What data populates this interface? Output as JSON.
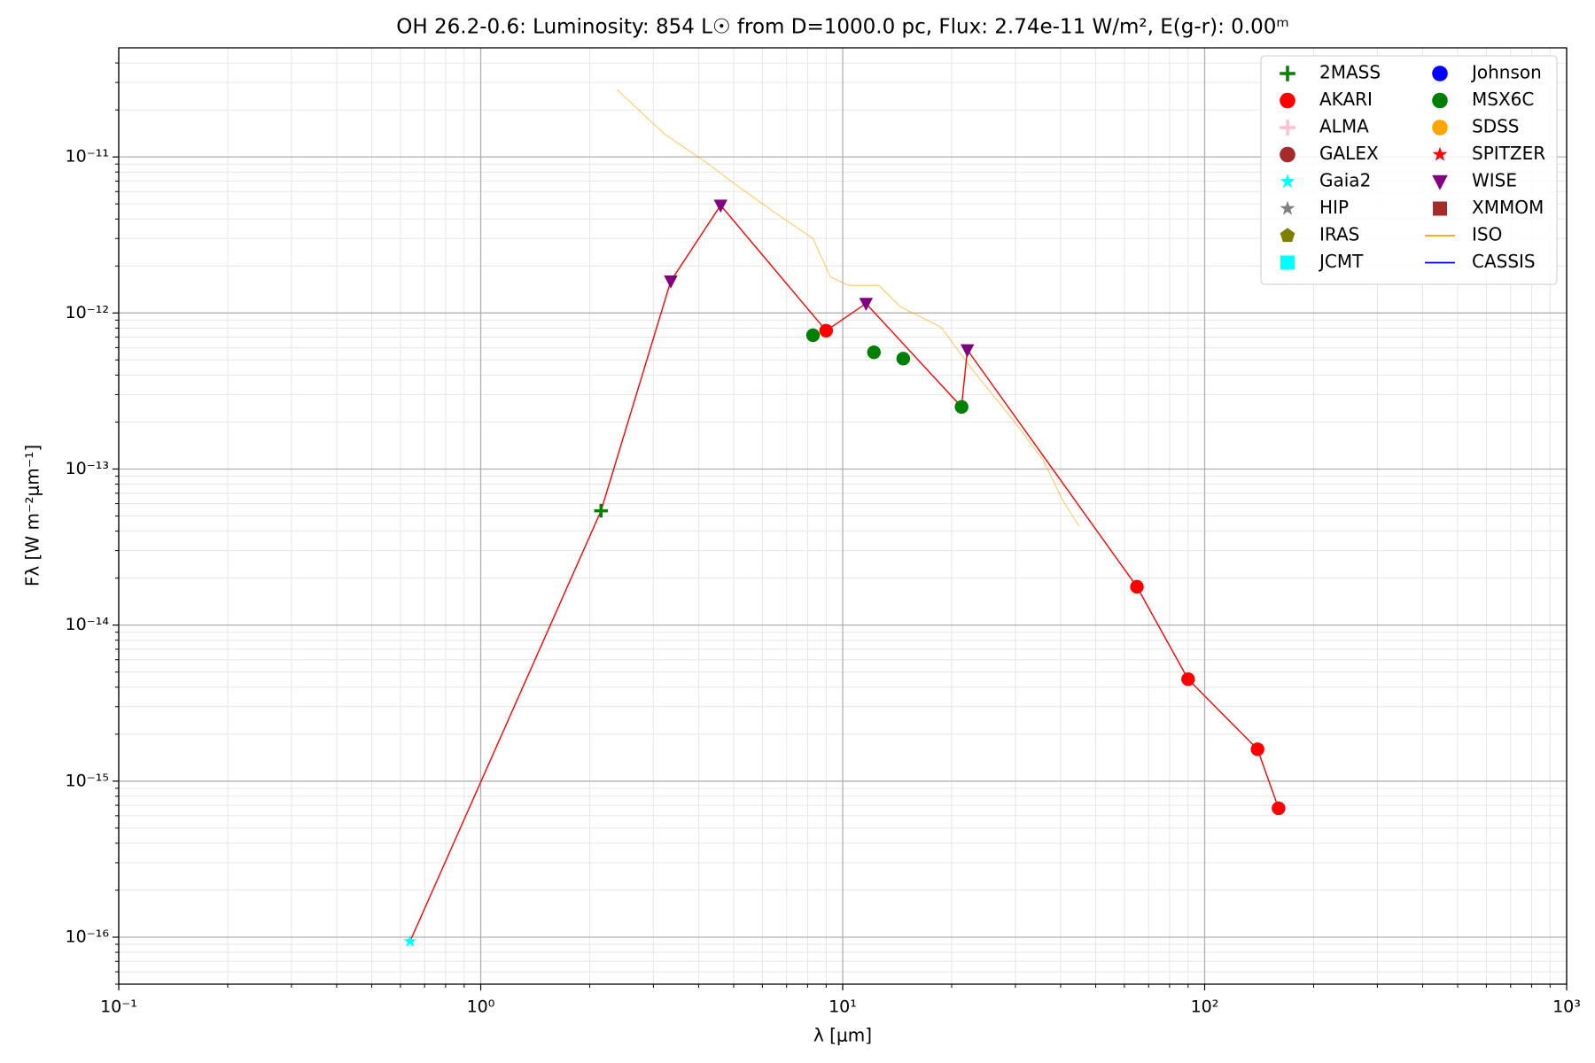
{
  "chart_data": {
    "type": "sed",
    "title": "OH 26.2-0.6:  Luminosity: 854 L☉ from D=1000.0 pc, Flux: 2.74e-11 W/m², E(g-r): 0.00ᵐ",
    "x_label": "λ [μm]",
    "y_label": "Fλ [W m⁻²μm⁻¹]",
    "x_log": true,
    "y_log": true,
    "grid": true,
    "minor_grid": true,
    "legend_position": "upper right",
    "xlim": [
      0.1,
      1000
    ],
    "ylim": [
      5e-17,
      5e-11
    ],
    "xticks": [
      {
        "value": 0.1,
        "label": "10⁻¹"
      },
      {
        "value": 1,
        "label": "10⁰"
      },
      {
        "value": 10,
        "label": "10¹"
      },
      {
        "value": 100,
        "label": "10²"
      },
      {
        "value": 1000,
        "label": "10³"
      }
    ],
    "yticks": [
      {
        "value": 1e-16,
        "label": "10⁻¹⁶"
      },
      {
        "value": 1e-15,
        "label": "10⁻¹⁵"
      },
      {
        "value": 1e-14,
        "label": "10⁻¹⁴"
      },
      {
        "value": 1e-13,
        "label": "10⁻¹³"
      },
      {
        "value": 1e-12,
        "label": "10⁻¹²"
      },
      {
        "value": 1e-11,
        "label": "10⁻¹¹"
      }
    ],
    "sed_line": {
      "color": "#ff0000",
      "x": [
        0.638,
        2.15,
        3.35,
        4.6,
        9.0,
        11.6,
        21.3,
        22.1,
        65,
        90,
        140,
        160
      ],
      "values": [
        9.4e-17,
        5.4e-14,
        1.6e-12,
        4.9e-12,
        7.7e-13,
        1.15e-12,
        2.5e-13,
        5.8e-13,
        1.76e-14,
        4.5e-15,
        1.6e-15,
        6.7e-16
      ]
    },
    "series": [
      {
        "name": "2MASS",
        "color": "#008000",
        "marker": "plus",
        "x": [
          2.15
        ],
        "values": [
          5.4e-14
        ]
      },
      {
        "name": "AKARI",
        "color": "#ff0000",
        "marker": "circle",
        "x": [
          9.0,
          65,
          90,
          140,
          160
        ],
        "values": [
          7.7e-13,
          1.76e-14,
          4.5e-15,
          1.6e-15,
          6.7e-16
        ]
      },
      {
        "name": "ALMA",
        "color": "#ffc0cb",
        "marker": "plus",
        "x": [],
        "values": []
      },
      {
        "name": "GALEX",
        "color": "#a52a2a",
        "marker": "circle",
        "x": [],
        "values": []
      },
      {
        "name": "Gaia2",
        "color": "#00ffff",
        "marker": "star",
        "x": [
          0.638
        ],
        "values": [
          9.4e-17
        ]
      },
      {
        "name": "HIP",
        "color": "#808080",
        "marker": "star",
        "x": [],
        "values": []
      },
      {
        "name": "IRAS",
        "color": "#808000",
        "marker": "pentagon",
        "x": [],
        "values": []
      },
      {
        "name": "JCMT",
        "color": "#00ffff",
        "marker": "square",
        "x": [],
        "values": []
      },
      {
        "name": "Johnson",
        "color": "#0000ff",
        "marker": "circle",
        "x": [],
        "values": []
      },
      {
        "name": "MSX6C",
        "color": "#008000",
        "marker": "circle",
        "x": [
          8.28,
          12.2,
          14.7,
          21.3
        ],
        "values": [
          7.2e-13,
          5.6e-13,
          5.1e-13,
          2.5e-13
        ]
      },
      {
        "name": "SDSS",
        "color": "#ffa500",
        "marker": "circle",
        "x": [],
        "values": []
      },
      {
        "name": "SPITZER",
        "color": "#ff0000",
        "marker": "star",
        "x": [],
        "values": []
      },
      {
        "name": "WISE",
        "color": "#800080",
        "marker": "triangle-down",
        "x": [
          3.35,
          4.6,
          11.6,
          22.1
        ],
        "values": [
          1.6e-12,
          4.9e-12,
          1.15e-12,
          5.8e-13
        ]
      },
      {
        "name": "XMMOM",
        "color": "#a52a2a",
        "marker": "square",
        "x": [],
        "values": []
      },
      {
        "name": "ISO",
        "color": "#ffa500",
        "marker": "line",
        "x": [
          2.38,
          3.22,
          4.18,
          5.08,
          6.59,
          8.28,
          9.25,
          10.4,
          12.6,
          14.4,
          18.7,
          22.7,
          29.4,
          35.8,
          40.7,
          45.0
        ],
        "values": [
          2.7e-11,
          1.4e-11,
          9.3e-12,
          6.6e-12,
          4.3e-12,
          3e-12,
          1.7e-12,
          1.5e-12,
          1.5e-12,
          1.1e-12,
          8.1e-13,
          4.4e-13,
          2.1e-13,
          1.14e-13,
          6.2e-14,
          4.3e-14
        ]
      },
      {
        "name": "CASSIS",
        "color": "#0000ff",
        "marker": "line",
        "x": [],
        "values": []
      }
    ]
  }
}
